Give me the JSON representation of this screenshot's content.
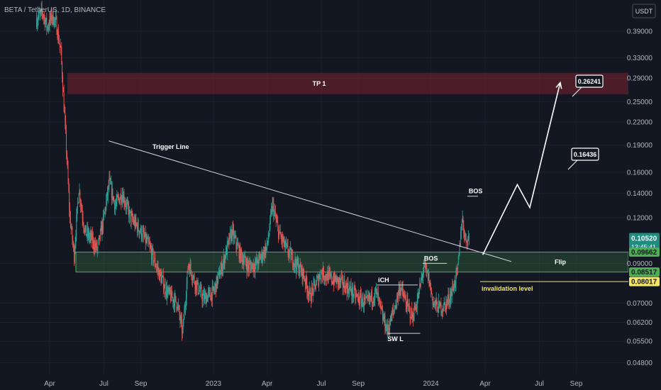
{
  "header": {
    "title": "BETA / TetherUS, 1D, BINANCE"
  },
  "currency_button": {
    "label": "USDT"
  },
  "colors": {
    "background": "#131722",
    "up": "#26a69a",
    "down": "#ef5350",
    "zone_green": "#4caf50",
    "zone_red": "#b22833",
    "invalidation": "#f5e663",
    "text": "#b2b5be"
  },
  "chart_data": {
    "type": "candlestick",
    "title": "BETA / TetherUS, 1D, BINANCE",
    "y_scale": "log",
    "ylim": [
      0.0442,
      0.4752
    ],
    "yticks": [
      "0.39000",
      "0.33000",
      "0.29000",
      "0.25000",
      "0.22000",
      "0.19000",
      "0.16000",
      "0.14000",
      "0.12000",
      "0.09000",
      "0.07000",
      "0.06200",
      "0.05500",
      "0.04800"
    ],
    "xticks": [
      "Apr",
      "Jul",
      "Sep",
      "2023",
      "Apr",
      "Jul",
      "Sep",
      "2024",
      "Apr",
      "Jul",
      "Sep"
    ],
    "price_path": [
      [
        "2022-03-10",
        0.42
      ],
      [
        "2022-03-20",
        0.44
      ],
      [
        "2022-03-28",
        0.4
      ],
      [
        "2022-04-05",
        0.43
      ],
      [
        "2022-04-12",
        0.41
      ],
      [
        "2022-04-20",
        0.34
      ],
      [
        "2022-04-28",
        0.2
      ],
      [
        "2022-05-05",
        0.12
      ],
      [
        "2022-05-12",
        0.095
      ],
      [
        "2022-05-20",
        0.145
      ],
      [
        "2022-05-30",
        0.11
      ],
      [
        "2022-06-10",
        0.105
      ],
      [
        "2022-06-20",
        0.098
      ],
      [
        "2022-07-01",
        0.12
      ],
      [
        "2022-07-10",
        0.15
      ],
      [
        "2022-07-20",
        0.13
      ],
      [
        "2022-08-01",
        0.14
      ],
      [
        "2022-08-15",
        0.12
      ],
      [
        "2022-09-01",
        0.11
      ],
      [
        "2022-09-15",
        0.1
      ],
      [
        "2022-10-01",
        0.085
      ],
      [
        "2022-10-15",
        0.075
      ],
      [
        "2022-11-01",
        0.07
      ],
      [
        "2022-11-10",
        0.058
      ],
      [
        "2022-11-20",
        0.09
      ],
      [
        "2022-12-01",
        0.08
      ],
      [
        "2022-12-15",
        0.072
      ],
      [
        "2023-01-01",
        0.075
      ],
      [
        "2023-01-15",
        0.088
      ],
      [
        "2023-02-01",
        0.11
      ],
      [
        "2023-02-15",
        0.095
      ],
      [
        "2023-03-01",
        0.088
      ],
      [
        "2023-03-15",
        0.09
      ],
      [
        "2023-04-01",
        0.1
      ],
      [
        "2023-04-10",
        0.13
      ],
      [
        "2023-04-20",
        0.11
      ],
      [
        "2023-05-01",
        0.1
      ],
      [
        "2023-05-15",
        0.092
      ],
      [
        "2023-06-01",
        0.084
      ],
      [
        "2023-06-12",
        0.073
      ],
      [
        "2023-07-01",
        0.085
      ],
      [
        "2023-07-15",
        0.082
      ],
      [
        "2023-08-01",
        0.08
      ],
      [
        "2023-08-15",
        0.077
      ],
      [
        "2023-09-01",
        0.072
      ],
      [
        "2023-09-15",
        0.07
      ],
      [
        "2023-10-01",
        0.075
      ],
      [
        "2023-10-12",
        0.064
      ],
      [
        "2023-10-20",
        0.059
      ],
      [
        "2023-11-01",
        0.068
      ],
      [
        "2023-11-10",
        0.078
      ],
      [
        "2023-11-20",
        0.07
      ],
      [
        "2023-12-01",
        0.064
      ],
      [
        "2023-12-10",
        0.072
      ],
      [
        "2023-12-20",
        0.088
      ],
      [
        "2023-12-28",
        0.082
      ],
      [
        "2024-01-05",
        0.07
      ],
      [
        "2024-01-15",
        0.068
      ],
      [
        "2024-01-25",
        0.069
      ],
      [
        "2024-02-05",
        0.075
      ],
      [
        "2024-02-15",
        0.086
      ],
      [
        "2024-02-22",
        0.12
      ],
      [
        "2024-02-28",
        0.105
      ],
      [
        "2024-03-05",
        0.1052
      ]
    ],
    "last_price": {
      "value": 0.1052,
      "label": "0.10520",
      "countdown": "13:45:41"
    },
    "zones": [
      {
        "label": "TP 1",
        "low": 0.262,
        "high": 0.3
      },
      {
        "label": "Flip",
        "low": 0.08517,
        "high": 0.09662
      }
    ],
    "level_tags": [
      {
        "label": "0.09662",
        "value": 0.09662,
        "color": "#4caf50"
      },
      {
        "label": "0.08517",
        "value": 0.08517,
        "color": "#4caf50"
      },
      {
        "label": "0.08017",
        "value": 0.08017,
        "color": "#f5e663"
      }
    ],
    "invalidation": {
      "label": "invalidation level",
      "value": 0.08017
    },
    "trigger_line": {
      "label": "Trigger Line",
      "from": [
        "2022-07-01",
        0.195
      ],
      "to": [
        "2024-05-15",
        0.091
      ]
    },
    "annotations": [
      {
        "label": "BOS",
        "date": "2024-03-02",
        "value": 0.1375,
        "line_to": "2024-03-20"
      },
      {
        "label": "BOS",
        "date": "2023-12-18",
        "value": 0.09,
        "line_to": "2024-01-28"
      },
      {
        "label": "iCH",
        "date": "2023-10-02",
        "value": 0.0785,
        "line_to": "2023-12-10"
      },
      {
        "label": "SW L",
        "date": "2023-10-20",
        "value": 0.0578,
        "line_to": "2023-12-14",
        "text_below": true
      }
    ],
    "targets": [
      {
        "label": "0.26241",
        "value": 0.26241
      },
      {
        "label": "0.16436",
        "value": 0.16436
      }
    ],
    "projection": [
      [
        "2024-03-28",
        0.095
      ],
      [
        "2024-05-25",
        0.148
      ],
      [
        "2024-06-15",
        0.128
      ],
      [
        "2024-08-05",
        0.282
      ]
    ]
  }
}
